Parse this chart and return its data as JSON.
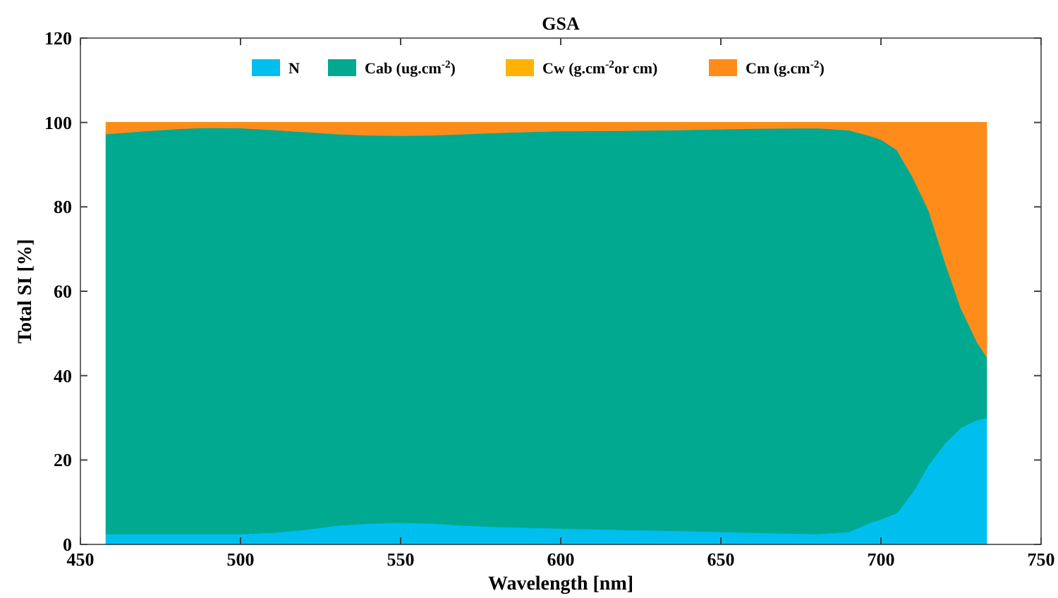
{
  "chart_data": {
    "type": "area",
    "stacked": true,
    "title": "GSA",
    "xlabel": "Wavelength [nm]",
    "ylabel": "Total SI [%]",
    "x": [
      458,
      470,
      480,
      490,
      500,
      510,
      520,
      530,
      540,
      550,
      560,
      570,
      580,
      600,
      620,
      640,
      660,
      680,
      690,
      696,
      700,
      705,
      710,
      715,
      720,
      725,
      730,
      733
    ],
    "series": [
      {
        "name": "N",
        "color": "#00bfef",
        "values": [
          2.5,
          2.5,
          2.5,
          2.5,
          2.5,
          2.8,
          3.5,
          4.5,
          5,
          5.2,
          5,
          4.5,
          4.2,
          3.8,
          3.5,
          3.2,
          2.8,
          2.5,
          3,
          5,
          6,
          7.5,
          12.5,
          19,
          24,
          27.7,
          29.5,
          30
        ]
      },
      {
        "name": "Cab (ug.cm$^{-2}$)",
        "color": "#00a98f",
        "values": [
          94.8,
          95.5,
          96,
          96.3,
          96.2,
          95.5,
          94.3,
          92.8,
          92,
          91.7,
          92,
          92.8,
          93.4,
          94.2,
          94.6,
          95.1,
          95.8,
          96.2,
          95.2,
          92,
          90,
          86,
          74.5,
          60,
          43,
          28.3,
          18.5,
          14.5
        ]
      },
      {
        "name": "Cw (g.cm$^{-2}$or cm)",
        "color": "#ffb300",
        "values": [
          null,
          null,
          null,
          null,
          null,
          null,
          null,
          null,
          null,
          null,
          null,
          null,
          null,
          null,
          null,
          null,
          null,
          null,
          null,
          null,
          null,
          null,
          null,
          null,
          null,
          null,
          null,
          null
        ]
      },
      {
        "name": "Cm (g.cm$^{-2}$)",
        "color": "#ff8c1a",
        "values": [
          2.7,
          2,
          1.5,
          1.2,
          1.3,
          1.7,
          2.2,
          2.7,
          3,
          3.1,
          3,
          2.7,
          2.4,
          2,
          1.9,
          1.7,
          1.4,
          1.3,
          1.8,
          3,
          4,
          6.5,
          13,
          21,
          33,
          44,
          52,
          55.5
        ]
      }
    ],
    "xlim": [
      450,
      750
    ],
    "xticks": [
      450,
      500,
      550,
      600,
      650,
      700,
      750
    ],
    "ylim": [
      0,
      120
    ],
    "yticks": [
      0,
      20,
      40,
      60,
      80,
      100,
      120
    ],
    "grid": false,
    "legend": "top"
  }
}
